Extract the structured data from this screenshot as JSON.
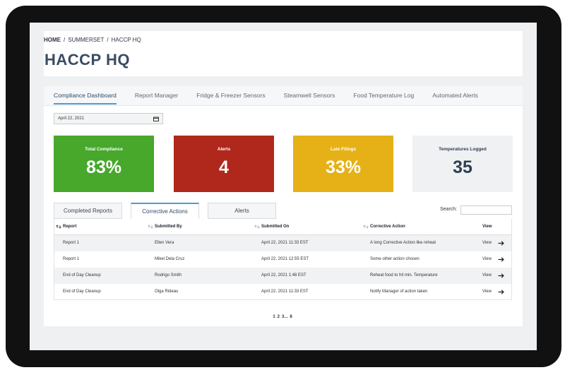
{
  "breadcrumb": {
    "items": [
      "HOME",
      "SUMMERSET",
      "HACCP HQ"
    ],
    "separator": "/"
  },
  "title": "HACCP HQ",
  "tabs": {
    "items": [
      "Compliance Dashboard",
      "Report Manager",
      "Fridge & Freezer Sensors",
      "Steamwell Sensors",
      "Food Temperature Log",
      "Automated Alerts"
    ],
    "active": "Compliance Dashboard"
  },
  "date": "April 22, 2021",
  "cards": [
    {
      "label": "Total Compliance",
      "value": "83%",
      "color": "#47a82b"
    },
    {
      "label": "Alerts",
      "value": "4",
      "color": "#b0281c"
    },
    {
      "label": "Late Filings",
      "value": "33%",
      "color": "#e6b117"
    },
    {
      "label": "Temperatures Logged",
      "value": "35",
      "color": "#f0f1f3"
    }
  ],
  "subtabs": {
    "items": [
      "Completed Reports",
      "Corrective Actions",
      "Alerts"
    ],
    "active": "Corrective Actions"
  },
  "search_label": "Search:",
  "table": {
    "columns": [
      "Report",
      "Submitted By",
      "Submitted On",
      "Corrective Action",
      "View"
    ],
    "rows": [
      [
        "Report 1",
        "Ellen Vera",
        "April 22, 2021 11:33 EST",
        "A long Corrective Action like reheat",
        "View"
      ],
      [
        "Report 1",
        "Mikel Dela Cruz",
        "April 22, 2021 12:55 EST",
        "Some other action chosen",
        "View"
      ],
      [
        "End of Day Cleanup",
        "Rodrigo Smith",
        "April 22, 2021 1:48 EST",
        "Reheat food to hit min. Temperature",
        "View"
      ],
      [
        "End of Day Cleanup",
        "Olga Rideau",
        "April 22, 2021 11:33 EST",
        "Notify Manager of action taken",
        "View"
      ]
    ]
  },
  "pagination": [
    "1",
    "2",
    "3...",
    "8"
  ]
}
